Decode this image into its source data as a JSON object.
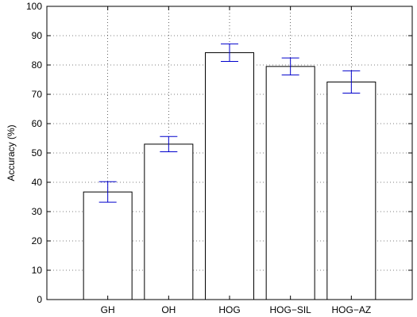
{
  "chart_data": {
    "type": "bar",
    "title": "",
    "xlabel": "",
    "ylabel": "Accuracy (%)",
    "ylim": [
      0,
      100
    ],
    "yticks": [
      0,
      10,
      20,
      30,
      40,
      50,
      60,
      70,
      80,
      90,
      100
    ],
    "categories": [
      "GH",
      "OH",
      "HOG",
      "HOG−SIL",
      "HOG−AZ"
    ],
    "values": [
      36.7,
      53.0,
      84.2,
      79.5,
      74.2
    ],
    "errors": [
      3.5,
      2.6,
      3.0,
      2.9,
      3.8
    ],
    "grid": "dotted",
    "bar_fill": "#ffffff",
    "bar_edge": "#000000",
    "error_color": "#0000cc"
  }
}
